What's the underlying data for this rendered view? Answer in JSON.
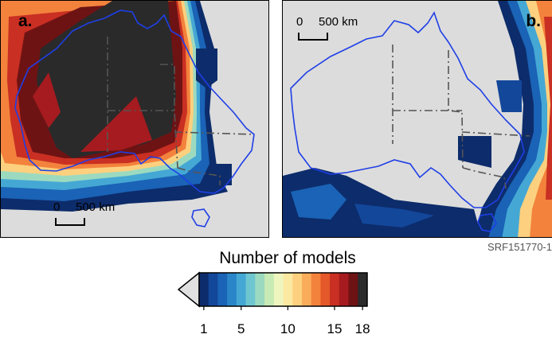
{
  "panels": [
    {
      "label": "a.",
      "scale": {
        "zero": "0",
        "distance": "500 km"
      }
    },
    {
      "label": "b.",
      "scale": {
        "zero": "0",
        "distance": "500 km"
      }
    }
  ],
  "figure_id": "SRF151770-1",
  "legend": {
    "title": "Number of models",
    "min": 1,
    "max": 18,
    "ticks": [
      "1",
      "5",
      "10",
      "15",
      "18"
    ],
    "tick_values": [
      1,
      5,
      10,
      15,
      18
    ],
    "colors": [
      "#0d2c6b",
      "#13479a",
      "#1a63b6",
      "#2a86c8",
      "#45a8d4",
      "#6ec6d0",
      "#9cdac0",
      "#c8eab5",
      "#eef5be",
      "#fbe9a2",
      "#fcd07e",
      "#f9ad5b",
      "#f3823c",
      "#e4582a",
      "#c92f22",
      "#a51b1f",
      "#6e1314",
      "#2a2a2a"
    ],
    "outlier_color": "#e0e0e0"
  }
}
